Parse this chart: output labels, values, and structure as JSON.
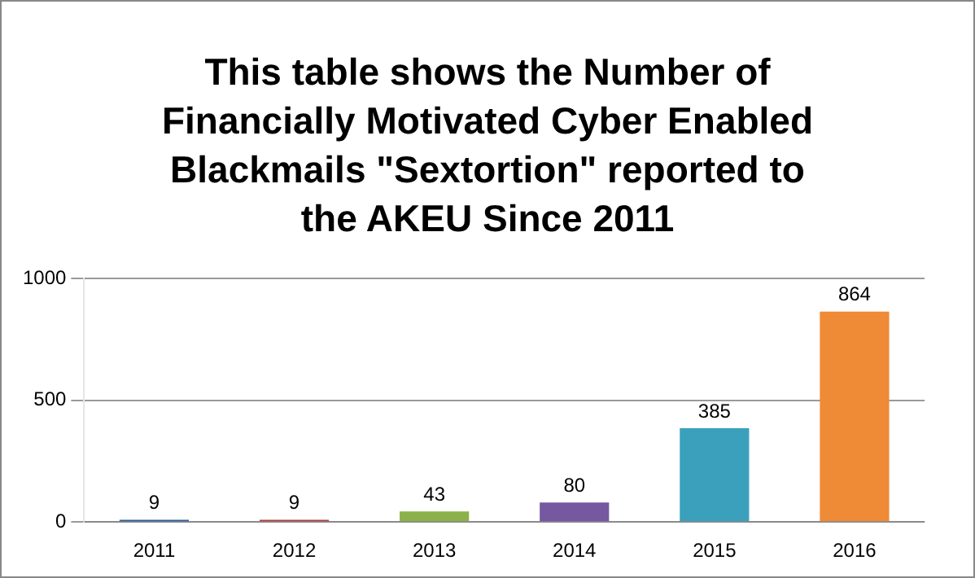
{
  "chart_data": {
    "type": "bar",
    "title": "This table shows the Number of Financially Motivated Cyber Enabled Blackmails \"Sextortion\" reported to the AKEU Since 2011",
    "categories": [
      "2011",
      "2012",
      "2013",
      "2014",
      "2015",
      "2016"
    ],
    "values": [
      9,
      9,
      43,
      80,
      385,
      864
    ],
    "colors": [
      "#2e5f9e",
      "#b2403c",
      "#8cb04a",
      "#7558a0",
      "#3aa0bc",
      "#ef8a36"
    ],
    "ylim": [
      0,
      1000
    ],
    "yticks": [
      0,
      500,
      1000
    ],
    "grid": "y",
    "legend": false,
    "data_labels": true
  }
}
